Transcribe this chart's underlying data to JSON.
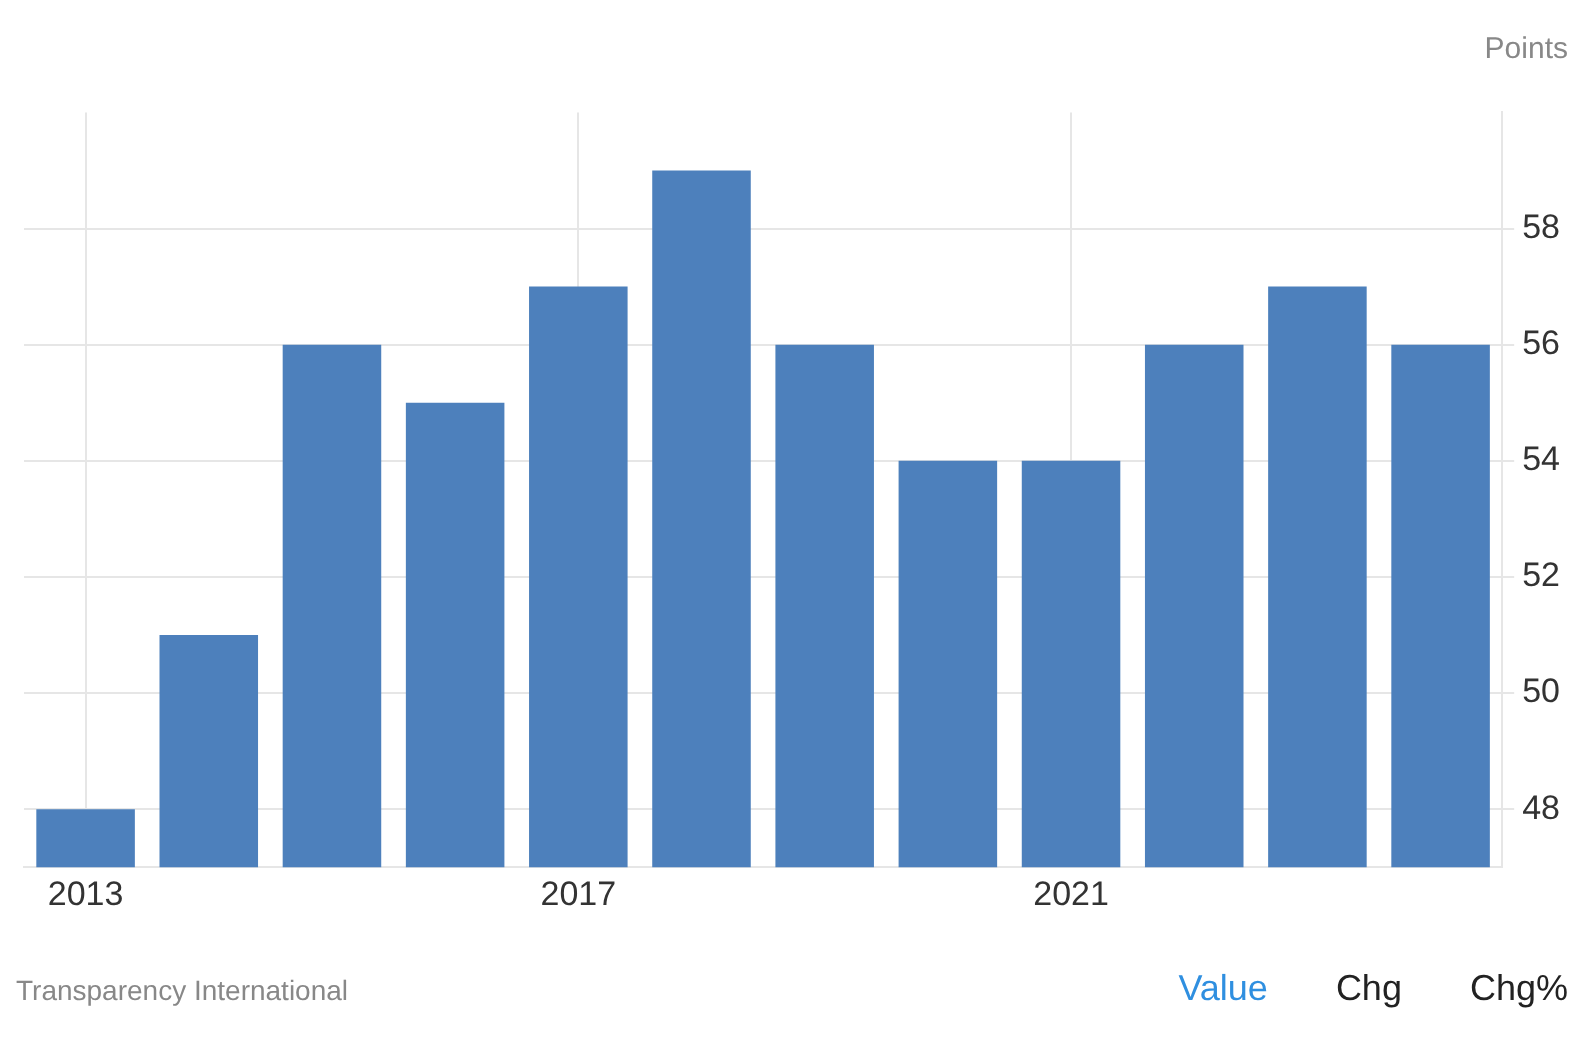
{
  "chart_data": {
    "type": "bar",
    "ylabel": "Points",
    "categories": [
      "2013",
      null,
      null,
      null,
      "2017",
      null,
      null,
      null,
      "2021",
      null,
      null,
      null
    ],
    "values": [
      48,
      51,
      56,
      55,
      57,
      59,
      56,
      54,
      54,
      56,
      57,
      56
    ],
    "color": "#4d80bc",
    "ylim": [
      47,
      60
    ],
    "yticks": [
      48,
      50,
      52,
      54,
      56,
      58
    ],
    "grid": true,
    "annotations": [
      "Transparency International",
      "Value",
      "Chg",
      "Chg%"
    ]
  }
}
